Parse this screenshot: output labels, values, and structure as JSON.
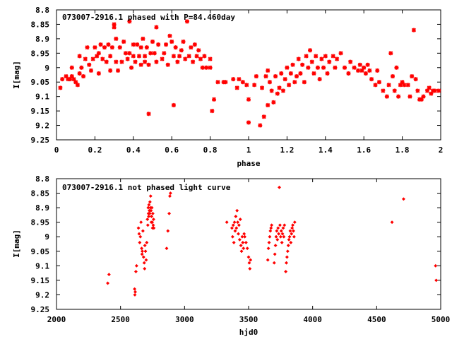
{
  "colors": {
    "points": "#ff0000",
    "axes": "#000000",
    "background": "#ffffff"
  },
  "chart_data": [
    {
      "type": "scatter",
      "title": "073007-2916.1 phased with P=84.460day",
      "xlabel": "phase",
      "ylabel": "I[mag]",
      "xlim": [
        0,
        2
      ],
      "ylim": [
        9.25,
        8.8
      ],
      "y_inverted": true,
      "grid": false,
      "marker": "asterisk",
      "xticks": [
        "0",
        "0.2",
        "0.4",
        "0.6",
        "0.8",
        "1",
        "1.2",
        "1.4",
        "1.6",
        "1.8",
        "2"
      ],
      "yticks": [
        "8.8",
        "8.85",
        "8.9",
        "8.95",
        "9",
        "9.05",
        "9.1",
        "9.15",
        "9.2",
        "9.25"
      ],
      "points": [
        [
          0.02,
          9.07
        ],
        [
          0.03,
          9.04
        ],
        [
          0.05,
          9.03
        ],
        [
          0.06,
          9.04
        ],
        [
          0.07,
          9.04
        ],
        [
          0.08,
          9.0
        ],
        [
          0.08,
          9.03
        ],
        [
          0.09,
          9.04
        ],
        [
          0.1,
          9.05
        ],
        [
          0.11,
          9.06
        ],
        [
          0.12,
          9.02
        ],
        [
          0.12,
          8.96
        ],
        [
          0.13,
          9.0
        ],
        [
          0.14,
          9.03
        ],
        [
          0.15,
          8.97
        ],
        [
          0.16,
          8.93
        ],
        [
          0.17,
          8.99
        ],
        [
          0.18,
          9.01
        ],
        [
          0.19,
          8.97
        ],
        [
          0.2,
          8.93
        ],
        [
          0.21,
          8.96
        ],
        [
          0.22,
          9.02
        ],
        [
          0.22,
          8.95
        ],
        [
          0.23,
          8.92
        ],
        [
          0.24,
          8.97
        ],
        [
          0.25,
          8.93
        ],
        [
          0.26,
          8.98
        ],
        [
          0.27,
          8.92
        ],
        [
          0.28,
          9.01
        ],
        [
          0.28,
          8.96
        ],
        [
          0.29,
          8.93
        ],
        [
          0.3,
          8.85
        ],
        [
          0.3,
          8.86
        ],
        [
          0.31,
          8.9
        ],
        [
          0.31,
          8.98
        ],
        [
          0.32,
          9.01
        ],
        [
          0.33,
          8.93
        ],
        [
          0.34,
          8.98
        ],
        [
          0.35,
          8.91
        ],
        [
          0.36,
          8.95
        ],
        [
          0.37,
          8.97
        ],
        [
          0.38,
          8.84
        ],
        [
          0.38,
          8.95
        ],
        [
          0.39,
          9.0
        ],
        [
          0.4,
          8.96
        ],
        [
          0.4,
          8.92
        ],
        [
          0.41,
          8.98
        ],
        [
          0.42,
          8.92
        ],
        [
          0.43,
          8.96
        ],
        [
          0.44,
          8.99
        ],
        [
          0.44,
          8.93
        ],
        [
          0.45,
          8.9
        ],
        [
          0.46,
          8.96
        ],
        [
          0.46,
          8.98
        ],
        [
          0.47,
          8.93
        ],
        [
          0.48,
          8.99
        ],
        [
          0.48,
          9.16
        ],
        [
          0.49,
          8.95
        ],
        [
          0.5,
          8.91
        ],
        [
          0.51,
          8.95
        ],
        [
          0.52,
          8.86
        ],
        [
          0.52,
          8.98
        ],
        [
          0.53,
          8.92
        ],
        [
          0.55,
          8.97
        ],
        [
          0.56,
          8.95
        ],
        [
          0.57,
          8.92
        ],
        [
          0.58,
          8.99
        ],
        [
          0.59,
          8.89
        ],
        [
          0.6,
          8.91
        ],
        [
          0.61,
          9.13
        ],
        [
          0.61,
          8.96
        ],
        [
          0.62,
          8.93
        ],
        [
          0.63,
          8.98
        ],
        [
          0.64,
          8.96
        ],
        [
          0.65,
          8.94
        ],
        [
          0.66,
          8.91
        ],
        [
          0.67,
          8.97
        ],
        [
          0.68,
          8.84
        ],
        [
          0.69,
          8.96
        ],
        [
          0.7,
          8.93
        ],
        [
          0.71,
          8.98
        ],
        [
          0.72,
          8.92
        ],
        [
          0.73,
          8.96
        ],
        [
          0.74,
          8.94
        ],
        [
          0.75,
          8.97
        ],
        [
          0.76,
          9.0
        ],
        [
          0.77,
          8.96
        ],
        [
          0.78,
          9.0
        ],
        [
          0.8,
          8.97
        ],
        [
          0.8,
          9.0
        ],
        [
          0.81,
          9.15
        ],
        [
          0.82,
          9.11
        ],
        [
          0.84,
          9.05
        ],
        [
          0.87,
          9.05
        ],
        [
          0.88,
          9.05
        ],
        [
          0.92,
          9.04
        ],
        [
          0.94,
          9.07
        ],
        [
          0.95,
          9.04
        ],
        [
          0.97,
          9.05
        ],
        [
          0.99,
          9.06
        ],
        [
          1.0,
          9.11
        ],
        [
          1.0,
          9.19
        ],
        [
          1.03,
          9.06
        ],
        [
          1.04,
          9.03
        ],
        [
          1.06,
          9.2
        ],
        [
          1.07,
          9.07
        ],
        [
          1.08,
          9.17
        ],
        [
          1.09,
          9.03
        ],
        [
          1.1,
          9.13
        ],
        [
          1.1,
          9.01
        ],
        [
          1.11,
          9.05
        ],
        [
          1.12,
          9.08
        ],
        [
          1.13,
          9.12
        ],
        [
          1.14,
          9.03
        ],
        [
          1.15,
          9.09
        ],
        [
          1.16,
          9.07
        ],
        [
          1.17,
          9.02
        ],
        [
          1.18,
          9.08
        ],
        [
          1.19,
          9.04
        ],
        [
          1.2,
          9.0
        ],
        [
          1.21,
          9.06
        ],
        [
          1.22,
          9.02
        ],
        [
          1.23,
          8.99
        ],
        [
          1.24,
          9.05
        ],
        [
          1.25,
          9.03
        ],
        [
          1.26,
          8.97
        ],
        [
          1.27,
          9.02
        ],
        [
          1.28,
          8.99
        ],
        [
          1.29,
          9.05
        ],
        [
          1.3,
          8.96
        ],
        [
          1.31,
          9.0
        ],
        [
          1.32,
          8.94
        ],
        [
          1.33,
          8.98
        ],
        [
          1.34,
          9.02
        ],
        [
          1.35,
          8.96
        ],
        [
          1.36,
          9.0
        ],
        [
          1.37,
          9.04
        ],
        [
          1.38,
          8.97
        ],
        [
          1.39,
          9.0
        ],
        [
          1.4,
          8.96
        ],
        [
          1.41,
          9.02
        ],
        [
          1.42,
          8.98
        ],
        [
          1.44,
          8.96
        ],
        [
          1.45,
          9.0
        ],
        [
          1.46,
          8.97
        ],
        [
          1.48,
          8.95
        ],
        [
          1.5,
          9.0
        ],
        [
          1.52,
          9.02
        ],
        [
          1.53,
          8.98
        ],
        [
          1.55,
          9.0
        ],
        [
          1.57,
          9.01
        ],
        [
          1.58,
          8.99
        ],
        [
          1.59,
          9.01
        ],
        [
          1.6,
          9.0
        ],
        [
          1.61,
          9.02
        ],
        [
          1.62,
          8.99
        ],
        [
          1.63,
          9.01
        ],
        [
          1.64,
          9.04
        ],
        [
          1.66,
          9.06
        ],
        [
          1.67,
          9.01
        ],
        [
          1.68,
          9.05
        ],
        [
          1.7,
          9.08
        ],
        [
          1.72,
          9.1
        ],
        [
          1.73,
          9.06
        ],
        [
          1.74,
          8.95
        ],
        [
          1.75,
          9.03
        ],
        [
          1.76,
          9.08
        ],
        [
          1.77,
          9.0
        ],
        [
          1.78,
          9.1
        ],
        [
          1.79,
          9.06
        ],
        [
          1.8,
          9.05
        ],
        [
          1.81,
          9.06
        ],
        [
          1.83,
          9.06
        ],
        [
          1.84,
          9.1
        ],
        [
          1.85,
          9.03
        ],
        [
          1.86,
          8.87
        ],
        [
          1.87,
          9.04
        ],
        [
          1.88,
          9.08
        ],
        [
          1.89,
          9.11
        ],
        [
          1.9,
          9.11
        ],
        [
          1.91,
          9.1
        ],
        [
          1.93,
          9.08
        ],
        [
          1.94,
          9.07
        ],
        [
          1.95,
          9.09
        ],
        [
          1.96,
          9.08
        ],
        [
          1.97,
          9.08
        ],
        [
          1.99,
          9.08
        ]
      ]
    },
    {
      "type": "scatter",
      "title": "073007-2916.1 not phased light curve",
      "xlabel": "hjd0",
      "ylabel": "I[mag]",
      "xlim": [
        2000,
        5000
      ],
      "ylim": [
        9.25,
        8.8
      ],
      "y_inverted": true,
      "grid": false,
      "marker": "diamond",
      "xticks": [
        "2000",
        "2500",
        "3000",
        "3500",
        "4000",
        "4500",
        "5000"
      ],
      "yticks": [
        "8.8",
        "8.85",
        "8.9",
        "8.95",
        "9",
        "9.05",
        "9.1",
        "9.15",
        "9.2",
        "9.25"
      ],
      "points": [
        [
          2400,
          9.16
        ],
        [
          2410,
          9.13
        ],
        [
          2610,
          9.18
        ],
        [
          2612,
          9.2
        ],
        [
          2615,
          9.19
        ],
        [
          2620,
          9.12
        ],
        [
          2625,
          9.1
        ],
        [
          2640,
          8.97
        ],
        [
          2645,
          8.99
        ],
        [
          2650,
          9.02
        ],
        [
          2655,
          9.0
        ],
        [
          2660,
          8.95
        ],
        [
          2665,
          9.04
        ],
        [
          2668,
          9.06
        ],
        [
          2670,
          9.05
        ],
        [
          2675,
          8.98
        ],
        [
          2680,
          9.07
        ],
        [
          2685,
          9.09
        ],
        [
          2688,
          9.11
        ],
        [
          2690,
          9.03
        ],
        [
          2695,
          9.05
        ],
        [
          2700,
          9.08
        ],
        [
          2705,
          9.02
        ],
        [
          2710,
          8.94
        ],
        [
          2713,
          8.96
        ],
        [
          2716,
          8.9
        ],
        [
          2718,
          8.92
        ],
        [
          2720,
          8.93
        ],
        [
          2722,
          8.89
        ],
        [
          2725,
          8.91
        ],
        [
          2728,
          8.92
        ],
        [
          2730,
          8.88
        ],
        [
          2733,
          8.9
        ],
        [
          2735,
          8.86
        ],
        [
          2738,
          8.91
        ],
        [
          2740,
          8.95
        ],
        [
          2742,
          8.93
        ],
        [
          2745,
          8.9
        ],
        [
          2748,
          8.95
        ],
        [
          2750,
          8.97
        ],
        [
          2752,
          8.92
        ],
        [
          2755,
          8.96
        ],
        [
          2758,
          8.94
        ],
        [
          2760,
          8.97
        ],
        [
          2860,
          9.04
        ],
        [
          2870,
          8.98
        ],
        [
          2880,
          8.92
        ],
        [
          2885,
          8.86
        ],
        [
          2890,
          8.85
        ],
        [
          3330,
          8.95
        ],
        [
          3370,
          8.97
        ],
        [
          3375,
          9.0
        ],
        [
          3380,
          8.96
        ],
        [
          3385,
          9.02
        ],
        [
          3390,
          8.95
        ],
        [
          3395,
          8.98
        ],
        [
          3400,
          8.93
        ],
        [
          3405,
          8.97
        ],
        [
          3410,
          8.91
        ],
        [
          3415,
          8.95
        ],
        [
          3420,
          8.99
        ],
        [
          3425,
          8.96
        ],
        [
          3430,
          9.01
        ],
        [
          3435,
          8.94
        ],
        [
          3440,
          9.03
        ],
        [
          3445,
          9.05
        ],
        [
          3450,
          9.0
        ],
        [
          3455,
          9.02
        ],
        [
          3460,
          9.04
        ],
        [
          3465,
          8.99
        ],
        [
          3470,
          9.0
        ],
        [
          3480,
          9.02
        ],
        [
          3490,
          9.04
        ],
        [
          3500,
          9.07
        ],
        [
          3505,
          9.09
        ],
        [
          3510,
          9.11
        ],
        [
          3515,
          9.08
        ],
        [
          3650,
          9.08
        ],
        [
          3655,
          9.04
        ],
        [
          3660,
          9.02
        ],
        [
          3665,
          9.0
        ],
        [
          3670,
          8.98
        ],
        [
          3675,
          8.97
        ],
        [
          3680,
          8.96
        ],
        [
          3700,
          9.09
        ],
        [
          3705,
          9.06
        ],
        [
          3710,
          9.03
        ],
        [
          3715,
          9.0
        ],
        [
          3720,
          8.98
        ],
        [
          3725,
          9.01
        ],
        [
          3730,
          8.97
        ],
        [
          3735,
          8.99
        ],
        [
          3740,
          8.83
        ],
        [
          3745,
          8.96
        ],
        [
          3750,
          9.0
        ],
        [
          3755,
          8.98
        ],
        [
          3760,
          9.02
        ],
        [
          3765,
          8.99
        ],
        [
          3770,
          8.97
        ],
        [
          3775,
          9.0
        ],
        [
          3780,
          8.96
        ],
        [
          3790,
          9.12
        ],
        [
          3795,
          9.09
        ],
        [
          3800,
          9.07
        ],
        [
          3805,
          9.05
        ],
        [
          3810,
          9.03
        ],
        [
          3815,
          9.01
        ],
        [
          3820,
          9.0
        ],
        [
          3825,
          8.98
        ],
        [
          3830,
          9.02
        ],
        [
          3835,
          8.99
        ],
        [
          3840,
          8.97
        ],
        [
          3845,
          8.96
        ],
        [
          3850,
          8.98
        ],
        [
          3855,
          9.0
        ],
        [
          3860,
          8.95
        ],
        [
          4620,
          8.95
        ],
        [
          4710,
          8.87
        ],
        [
          4960,
          9.1
        ],
        [
          4965,
          9.15
        ]
      ]
    }
  ]
}
